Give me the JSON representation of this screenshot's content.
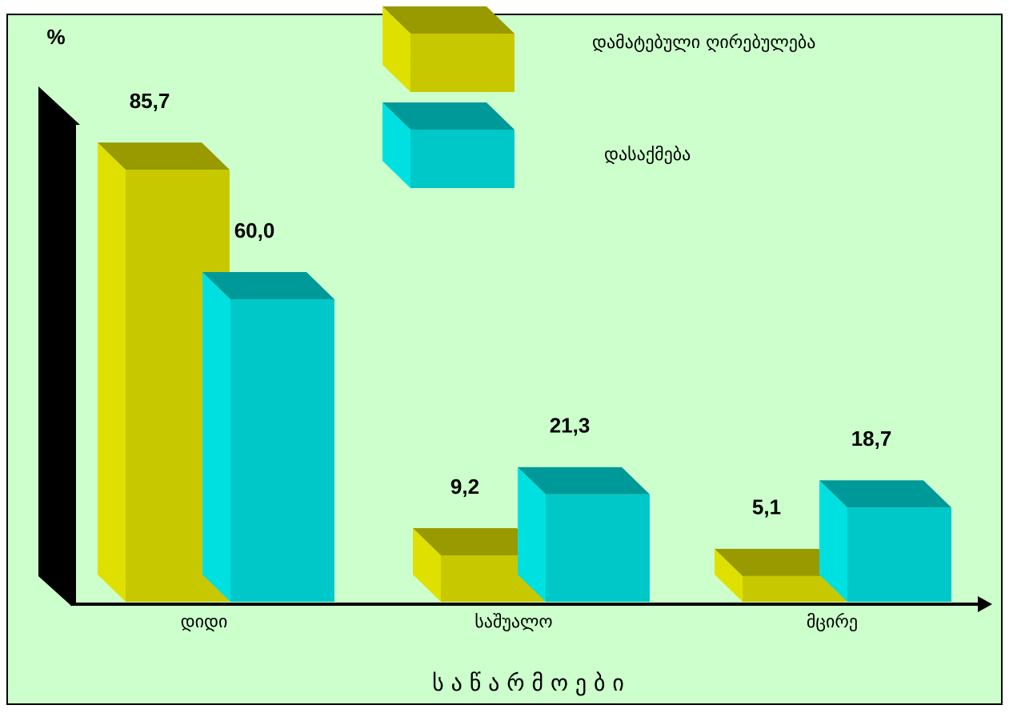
{
  "chart_data": {
    "type": "bar3d",
    "y_label": "%",
    "x_label": "ს ა წ ა რ მ ო ე ბ ი",
    "categories": [
      "დიდი",
      "საშუალო",
      "მცირე"
    ],
    "series": [
      {
        "name": "დამატებული ღირებულება",
        "color": "#c8c800",
        "values": [
          85.7,
          9.2,
          5.1
        ],
        "value_labels": [
          "85,7",
          "9,2",
          "5,1"
        ]
      },
      {
        "name": "დასაქმება",
        "color": "#00c8c8",
        "values": [
          60.0,
          21.3,
          18.7
        ],
        "value_labels": [
          "60,0",
          "21,3",
          "18,7"
        ]
      }
    ],
    "ylim": [
      0,
      90
    ],
    "legend": "top"
  }
}
